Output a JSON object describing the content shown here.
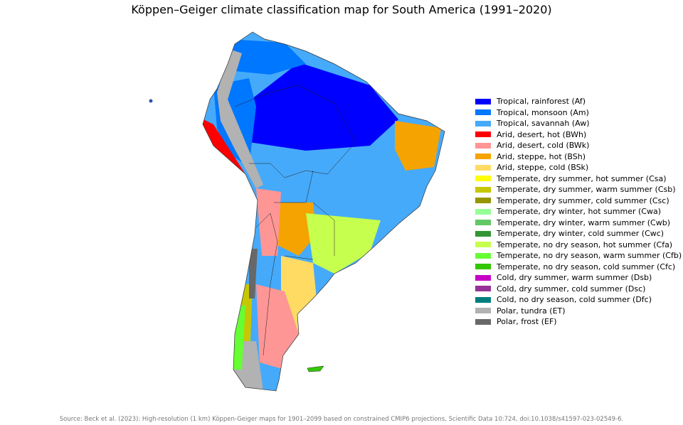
{
  "title": "Köppen–Geiger climate classification map for South America (1991–2020)",
  "legend": [
    {
      "label": "Tropical, rainforest (Af)",
      "color": "#0000fe"
    },
    {
      "label": "Tropical, monsoon (Am)",
      "color": "#0077ff"
    },
    {
      "label": "Tropical, savannah (Aw)",
      "color": "#46aafa"
    },
    {
      "label": "Arid, desert, hot (BWh)",
      "color": "#fe0000"
    },
    {
      "label": "Arid, desert, cold (BWk)",
      "color": "#fe9695"
    },
    {
      "label": "Arid, steppe, hot (BSh)",
      "color": "#f5a301"
    },
    {
      "label": "Arid, steppe, cold (BSk)",
      "color": "#ffdb63"
    },
    {
      "label": "Temperate, dry summer, hot summer (Csa)",
      "color": "#ffff00"
    },
    {
      "label": "Temperate, dry summer, warm summer (Csb)",
      "color": "#c6c700"
    },
    {
      "label": "Temperate, dry summer, cold summer (Csc)",
      "color": "#969600"
    },
    {
      "label": "Temperate, dry winter, hot summer (Cwa)",
      "color": "#96ff96"
    },
    {
      "label": "Temperate, dry winter, warm summer (Cwb)",
      "color": "#63c764"
    },
    {
      "label": "Temperate, dry winter, cold summer (Cwc)",
      "color": "#329633"
    },
    {
      "label": "Temperate, no dry season, hot summer (Cfa)",
      "color": "#c6ff4e"
    },
    {
      "label": "Temperate, no dry season, warm summer (Cfb)",
      "color": "#66ff33"
    },
    {
      "label": "Temperate, no dry season, cold summer (Cfc)",
      "color": "#33c701"
    },
    {
      "label": "Cold, dry summer, warm summer (Dsb)",
      "color": "#c600c7"
    },
    {
      "label": "Cold, dry summer, cold summer (Dsc)",
      "color": "#963295"
    },
    {
      "label": "Cold, no dry season, cold summer (Dfc)",
      "color": "#007d7d"
    },
    {
      "label": "Polar, tundra (ET)",
      "color": "#b2b2b2"
    },
    {
      "label": "Polar, frost (EF)",
      "color": "#686868"
    }
  ],
  "source": "Source: Beck et al. (2023): High-resolution (1 km) Köppen-Geiger maps for 1901–2099 based on constrained CMIP6 projections, Scientific Data 10:724, doi:10.1038/s41597-023-02549-6."
}
